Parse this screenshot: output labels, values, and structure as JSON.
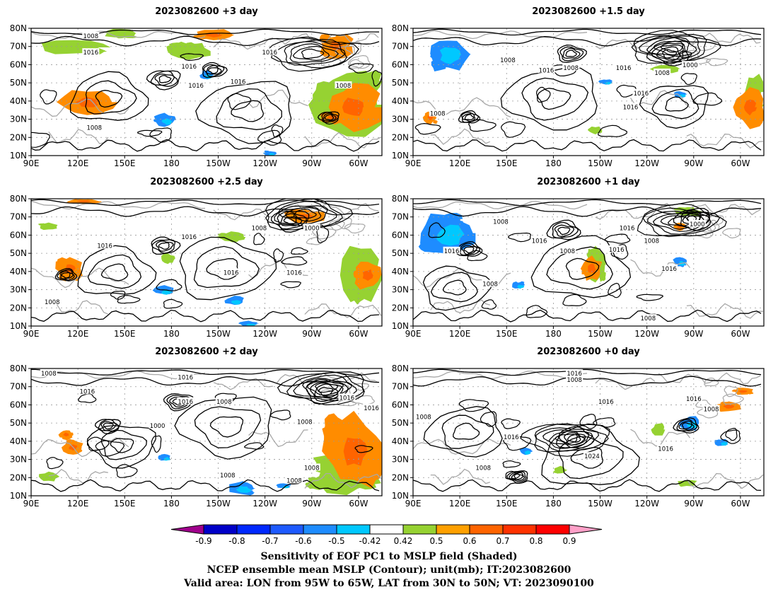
{
  "figure": {
    "panels": [
      {
        "title": "2023082600  +3 day",
        "labels": [
          "1008",
          "1016",
          "1016",
          "1016",
          "1016",
          "1016",
          "1008",
          "1008"
        ]
      },
      {
        "title": "2023082600  +1.5 day",
        "labels": [
          "1008",
          "1016",
          "1008",
          "1016",
          "1008",
          "1000",
          "1016",
          "1016",
          "1008"
        ]
      },
      {
        "title": "2023082600  +2.5 day",
        "labels": [
          "1016",
          "1016",
          "1008",
          "1000",
          "1016",
          "1016",
          "1008"
        ]
      },
      {
        "title": "2023082600  +1 day",
        "labels": [
          "1008",
          "1016",
          "1016",
          "1008",
          "1016",
          "1000",
          "1016",
          "1008",
          "1016",
          "1008",
          "1008"
        ]
      },
      {
        "title": "2023082600  +2 day",
        "labels": [
          "1008",
          "1016",
          "1016",
          "1016",
          "1008",
          "1008",
          "1000",
          "1016",
          "1016",
          "1008",
          "1008",
          "1008"
        ]
      },
      {
        "title": "2023082600  +0 day",
        "labels": [
          "1016",
          "1008",
          "1016",
          "1008",
          "1016",
          "1024",
          "1016",
          "1008",
          "1016",
          "1008"
        ]
      }
    ],
    "lat_ticks": [
      "80N",
      "70N",
      "60N",
      "50N",
      "40N",
      "30N",
      "20N",
      "10N"
    ],
    "lon_ticks": [
      "90E",
      "120E",
      "150E",
      "180",
      "150W",
      "120W",
      "90W",
      "60W"
    ],
    "colorbar": {
      "labels": [
        "-0.9",
        "-0.8",
        "-0.7",
        "-0.6",
        "-0.5",
        "-0.42",
        "0.42",
        "0.5",
        "0.6",
        "0.7",
        "0.8",
        "0.9"
      ],
      "colors": [
        "#a0008c",
        "#0000c8",
        "#0028ff",
        "#1e5aff",
        "#1e8cff",
        "#00c8ff",
        "#ffffff",
        "#96d232",
        "#ffa000",
        "#ff6400",
        "#ff3200",
        "#ff0000",
        "#ffa0c8"
      ]
    },
    "caption": {
      "line1": "Sensitivity of EOF PC1 to MSLP field (Shaded)",
      "line2": "NCEP ensemble mean MSLP (Contour); unit(mb); IT:2023082600",
      "line3": "Valid area: LON from 95W to 65W, LAT from 30N to 50N; VT: 2023090100"
    }
  }
}
